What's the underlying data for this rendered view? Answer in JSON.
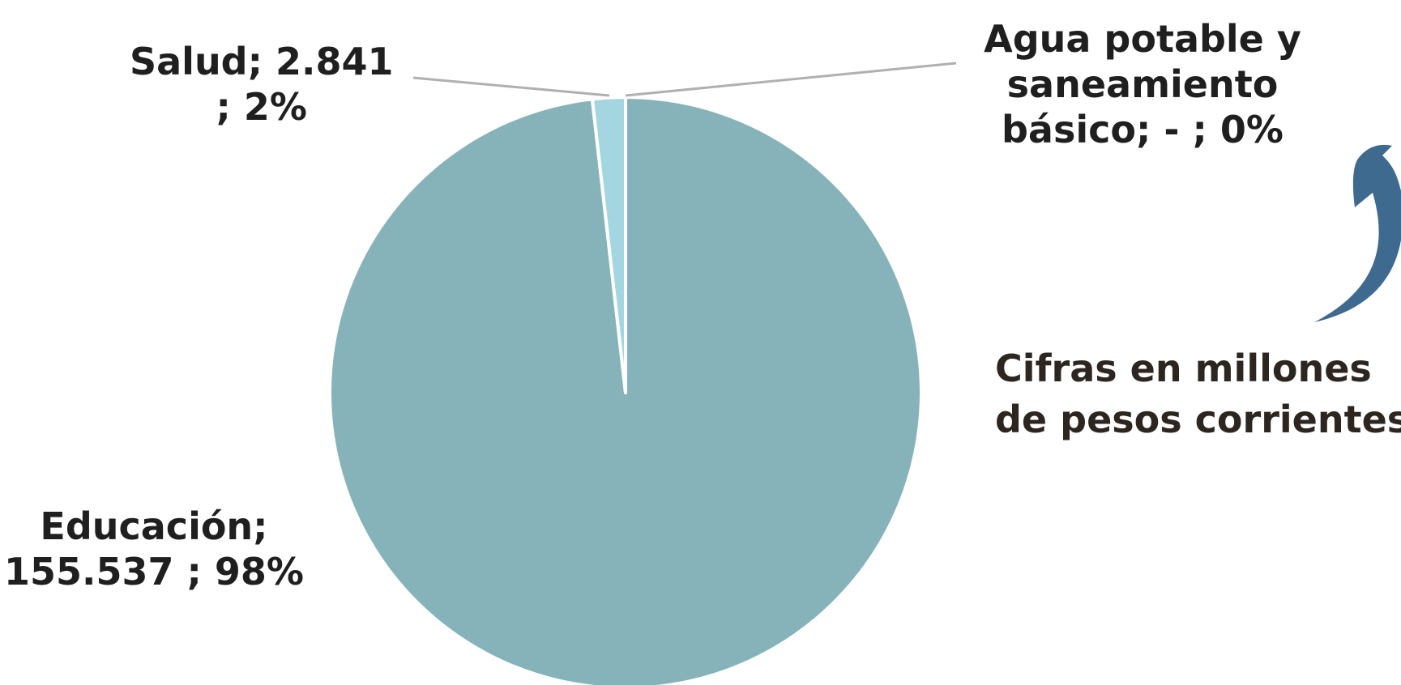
{
  "chart_data": {
    "type": "pie",
    "title": "",
    "slices": [
      {
        "label": "Educación",
        "value_text": "155.537",
        "value": 155537,
        "percent_text": "98%",
        "color": "#86b3b9"
      },
      {
        "label": "Salud",
        "value_text": "2.841",
        "value": 2841,
        "percent_text": "2%",
        "color": "#a4d6e1"
      },
      {
        "label": "Agua potable y saneamiento básico",
        "value_text": "-",
        "value": 0,
        "percent_text": "0%",
        "color": "#a4d6e1"
      }
    ],
    "data_labels": {
      "salud": {
        "line1": "Salud;  2.841",
        "line2": "; 2%"
      },
      "agua": {
        "line1": "Agua potable y",
        "line2": "saneamiento",
        "line3": "básico;  -   ; 0%"
      },
      "educacion": {
        "line1": "Educación;",
        "line2": "155.537 ; 98%"
      }
    },
    "legend": "none"
  },
  "annotation": {
    "line1": "Cifras en millones",
    "line2": "de pesos corrientes",
    "arrow_color": "#3f6a8f"
  },
  "colors": {
    "leader_line": "#b0b0b0",
    "slice_border": "#ffffff"
  }
}
